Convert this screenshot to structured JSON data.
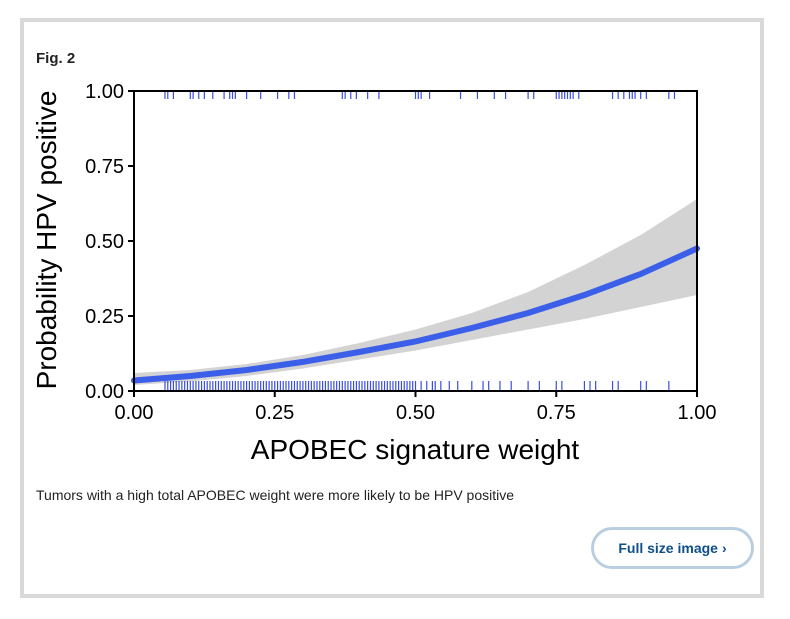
{
  "figure": {
    "label": "Fig. 2",
    "caption": "Tumors with a high total APOBEC weight were more likely to be HPV positive",
    "full_size_label": "Full size image",
    "chevron_icon": "chevron-right-icon"
  },
  "colors": {
    "fit_line": "#3b5fe8",
    "ci_band": "#d3d3d3",
    "rug": "#3a4ee0",
    "button_border": "#b9cfe1",
    "button_text": "#0f4f8a"
  },
  "chart_data": {
    "type": "line",
    "title": "",
    "xlabel": "APOBEC signature weight",
    "ylabel": "Probability HPV positive",
    "xlim": [
      0,
      1
    ],
    "ylim": [
      0,
      1
    ],
    "xticks": [
      "0.00",
      "0.25",
      "0.50",
      "0.75",
      "1.00"
    ],
    "yticks": [
      "0.00",
      "0.25",
      "0.50",
      "0.75",
      "1.00"
    ],
    "grid": false,
    "legend": "none",
    "fit": {
      "x": [
        0.0,
        0.1,
        0.2,
        0.3,
        0.4,
        0.5,
        0.6,
        0.7,
        0.8,
        0.9,
        1.0
      ],
      "y": [
        0.035,
        0.05,
        0.07,
        0.097,
        0.13,
        0.165,
        0.21,
        0.26,
        0.32,
        0.39,
        0.475
      ]
    },
    "ci_upper": [
      0.06,
      0.07,
      0.09,
      0.12,
      0.16,
      0.205,
      0.26,
      0.33,
      0.42,
      0.52,
      0.64
    ],
    "ci_lower": [
      0.02,
      0.032,
      0.05,
      0.075,
      0.105,
      0.135,
      0.17,
      0.205,
      0.24,
      0.28,
      0.32
    ],
    "rug_hpv_positive_x": [
      0.055,
      0.06,
      0.07,
      0.1,
      0.105,
      0.115,
      0.125,
      0.14,
      0.16,
      0.17,
      0.175,
      0.18,
      0.2,
      0.225,
      0.255,
      0.275,
      0.285,
      0.37,
      0.375,
      0.385,
      0.395,
      0.415,
      0.435,
      0.5,
      0.505,
      0.51,
      0.525,
      0.58,
      0.61,
      0.64,
      0.66,
      0.7,
      0.71,
      0.75,
      0.755,
      0.76,
      0.765,
      0.77,
      0.775,
      0.78,
      0.79,
      0.85,
      0.86,
      0.87,
      0.88,
      0.885,
      0.89,
      0.9,
      0.91,
      0.95,
      0.96
    ],
    "rug_hpv_negative_x": [
      0.055,
      0.06,
      0.065,
      0.07,
      0.075,
      0.08,
      0.085,
      0.09,
      0.095,
      0.1,
      0.105,
      0.11,
      0.115,
      0.12,
      0.125,
      0.13,
      0.135,
      0.14,
      0.145,
      0.15,
      0.155,
      0.16,
      0.165,
      0.17,
      0.175,
      0.18,
      0.185,
      0.19,
      0.195,
      0.2,
      0.205,
      0.21,
      0.215,
      0.22,
      0.225,
      0.23,
      0.235,
      0.24,
      0.245,
      0.25,
      0.255,
      0.26,
      0.265,
      0.27,
      0.275,
      0.28,
      0.285,
      0.29,
      0.295,
      0.3,
      0.305,
      0.31,
      0.315,
      0.32,
      0.325,
      0.33,
      0.335,
      0.34,
      0.345,
      0.35,
      0.355,
      0.36,
      0.365,
      0.37,
      0.375,
      0.38,
      0.385,
      0.39,
      0.395,
      0.4,
      0.405,
      0.41,
      0.415,
      0.42,
      0.425,
      0.43,
      0.435,
      0.44,
      0.445,
      0.45,
      0.455,
      0.46,
      0.465,
      0.47,
      0.475,
      0.48,
      0.485,
      0.49,
      0.495,
      0.5,
      0.51,
      0.52,
      0.53,
      0.535,
      0.545,
      0.56,
      0.575,
      0.6,
      0.62,
      0.63,
      0.65,
      0.67,
      0.7,
      0.72,
      0.75,
      0.76,
      0.8,
      0.81,
      0.82,
      0.85,
      0.86,
      0.9,
      0.91,
      0.95,
      1.0
    ]
  }
}
